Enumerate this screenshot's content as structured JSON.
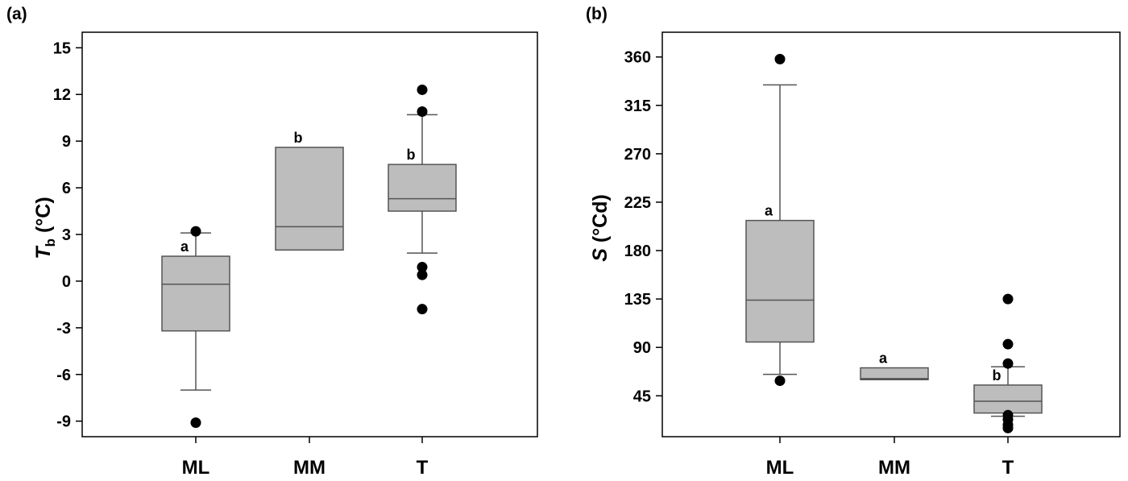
{
  "chart_data": [
    {
      "type": "box",
      "panel_label": "(a)",
      "ylabel": {
        "main": "T",
        "sub": "b",
        "rest": " (°C)"
      },
      "ylim": [
        -10,
        16
      ],
      "yticks": [
        {
          "value": -9,
          "label": "-9"
        },
        {
          "value": -6,
          "label": "-6"
        },
        {
          "value": -3,
          "label": "-3"
        },
        {
          "value": 0,
          "label": "0"
        },
        {
          "value": 3,
          "label": "3"
        },
        {
          "value": 6,
          "label": "6"
        },
        {
          "value": 9,
          "label": "9"
        },
        {
          "value": 12,
          "label": "12"
        },
        {
          "value": 15,
          "label": "15"
        }
      ],
      "categories": [
        "ML",
        "MM",
        "T"
      ],
      "boxes": [
        {
          "category": "ML",
          "q1": -3.2,
          "median": -0.2,
          "q3": 1.6,
          "whisker_low": -7.0,
          "whisker_high": 3.1,
          "outliers": [
            3.2,
            -9.1
          ],
          "letter": "a"
        },
        {
          "category": "MM",
          "q1": 2.0,
          "median": 3.5,
          "q3": 8.6,
          "whisker_low": null,
          "whisker_high": null,
          "outliers": [],
          "letter": "b"
        },
        {
          "category": "T",
          "q1": 4.5,
          "median": 5.3,
          "q3": 7.5,
          "whisker_low": 1.8,
          "whisker_high": 10.7,
          "outliers": [
            12.3,
            10.9,
            0.9,
            0.4,
            -1.8
          ],
          "letter": "b"
        }
      ]
    },
    {
      "type": "box",
      "panel_label": "(b)",
      "ylabel": {
        "main": "S",
        "sub": "",
        "rest": " (°Cd)"
      },
      "ylim": [
        7,
        383
      ],
      "yticks": [
        {
          "value": 45,
          "label": "45"
        },
        {
          "value": 90,
          "label": "90"
        },
        {
          "value": 135,
          "label": "135"
        },
        {
          "value": 180,
          "label": "180"
        },
        {
          "value": 225,
          "label": "225"
        },
        {
          "value": 270,
          "label": "270"
        },
        {
          "value": 315,
          "label": "315"
        },
        {
          "value": 360,
          "label": "360"
        }
      ],
      "categories": [
        "ML",
        "MM",
        "T"
      ],
      "boxes": [
        {
          "category": "ML",
          "q1": 95,
          "median": 134,
          "q3": 208,
          "whisker_low": 65,
          "whisker_high": 334,
          "outliers": [
            358,
            59
          ],
          "letter": "a"
        },
        {
          "category": "MM",
          "q1": 60,
          "median": 61,
          "q3": 71,
          "whisker_low": null,
          "whisker_high": null,
          "outliers": [],
          "letter": "a"
        },
        {
          "category": "T",
          "q1": 29,
          "median": 40,
          "q3": 55,
          "whisker_low": 26,
          "whisker_high": 72,
          "outliers": [
            135,
            93,
            75,
            27,
            23,
            18,
            15
          ],
          "letter": "b"
        }
      ]
    }
  ]
}
